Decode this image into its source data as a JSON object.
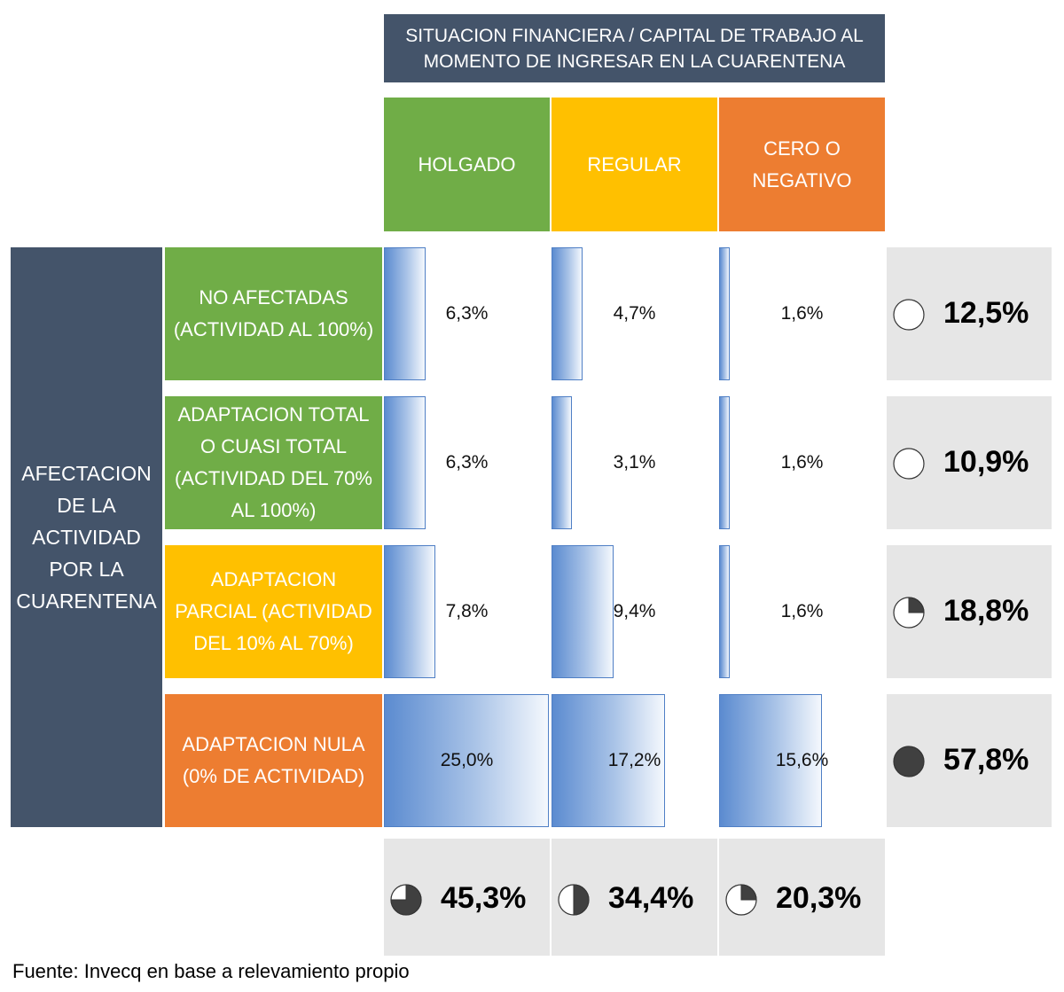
{
  "header": {
    "title": "SITUACION FINANCIERA / CAPITAL DE TRABAJO AL MOMENTO DE INGRESAR EN LA CUARENTENA",
    "columns": [
      {
        "label": "HOLGADO",
        "color": "#70ad47"
      },
      {
        "label": "REGULAR",
        "color": "#ffc000"
      },
      {
        "label": "CERO O NEGATIVO",
        "color": "#ed7d31"
      }
    ]
  },
  "side": {
    "title": "AFECTACION DE LA ACTIVIDAD POR LA CUARENTENA"
  },
  "rows": [
    {
      "label": "NO AFECTADAS (ACTIVIDAD AL 100%)",
      "color": "#70ad47"
    },
    {
      "label": "ADAPTACION TOTAL O CUASI TOTAL (ACTIVIDAD DEL 70% AL 100%)",
      "color": "#70ad47"
    },
    {
      "label": "ADAPTACION PARCIAL (ACTIVIDAD DEL 10% AL 70%)",
      "color": "#ffc000"
    },
    {
      "label": "ADAPTACION NULA (0% DE ACTIVIDAD)",
      "color": "#ed7d31"
    }
  ],
  "chart_data": {
    "type": "table",
    "row_labels": [
      "NO AFECTADAS (ACTIVIDAD AL 100%)",
      "ADAPTACION TOTAL O CUASI TOTAL (ACTIVIDAD DEL 70% AL 100%)",
      "ADAPTACION PARCIAL (ACTIVIDAD DEL 10% AL 70%)",
      "ADAPTACION NULA (0% DE ACTIVIDAD)"
    ],
    "column_labels": [
      "HOLGADO",
      "REGULAR",
      "CERO O NEGATIVO"
    ],
    "values": [
      [
        6.3,
        4.7,
        1.6
      ],
      [
        6.3,
        3.1,
        1.6
      ],
      [
        7.8,
        9.4,
        1.6
      ],
      [
        25.0,
        17.2,
        15.6
      ]
    ],
    "value_labels": [
      [
        "6,3%",
        "4,7%",
        "1,6%"
      ],
      [
        "6,3%",
        "3,1%",
        "1,6%"
      ],
      [
        "7,8%",
        "9,4%",
        "1,6%"
      ],
      [
        "25,0%",
        "17,2%",
        "15,6%"
      ]
    ],
    "bar_max": 25.0,
    "row_totals": [
      12.5,
      10.9,
      18.8,
      57.8
    ],
    "row_total_labels": [
      "12,5%",
      "10,9%",
      "18,8%",
      "57,8%"
    ],
    "row_total_pie_fraction": [
      0,
      0,
      0.25,
      1
    ],
    "column_totals": [
      45.3,
      34.4,
      20.3
    ],
    "column_total_labels": [
      "45,3%",
      "34,4%",
      "20,3%"
    ],
    "column_total_pie_fraction": [
      0.75,
      0.5,
      0.25
    ]
  },
  "colors": {
    "bar_border": "#4f7fc5",
    "pie_fill": "#404040",
    "total_bg": "#e6e6e6",
    "header_bg": "#44546a"
  },
  "source": "Fuente: Invecq en base a relevamiento propio"
}
